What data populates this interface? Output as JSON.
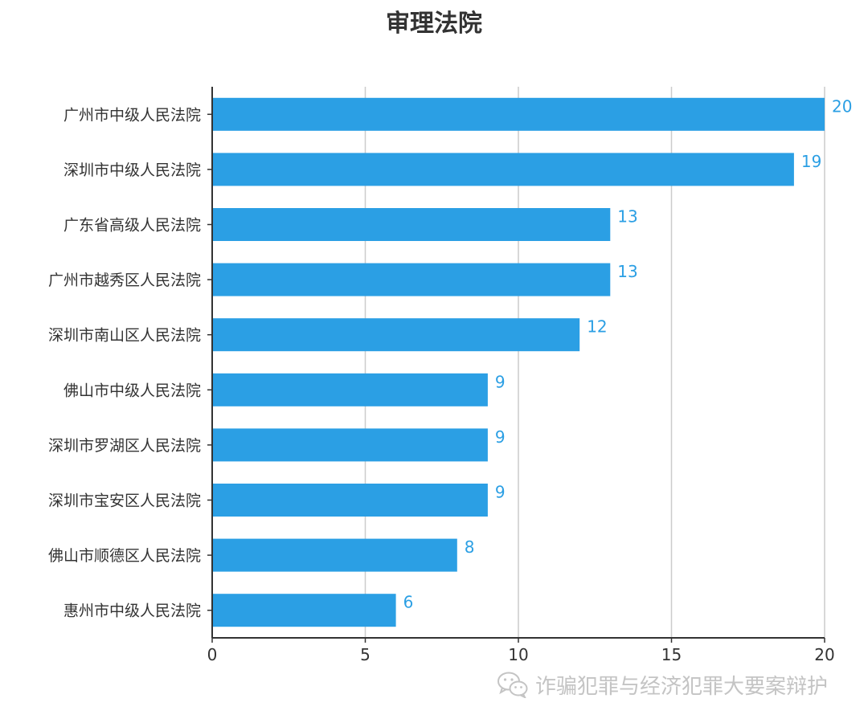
{
  "colors": {
    "bar": "#2b9fe4",
    "label": "#2b9fe4",
    "axis": "#333333",
    "grid": "#cccccc",
    "text": "#333333",
    "watermark": "#c4c4c4"
  },
  "chart_data": {
    "type": "bar",
    "orientation": "horizontal",
    "title": "审理法院",
    "categories": [
      "广州市中级人民法院",
      "深圳市中级人民法院",
      "广东省高级人民法院",
      "广州市越秀区人民法院",
      "深圳市南山区人民法院",
      "佛山市中级人民法院",
      "深圳市罗湖区人民法院",
      "深圳市宝安区人民法院",
      "佛山市顺德区人民法院",
      "惠州市中级人民法院"
    ],
    "values": [
      20,
      19,
      13,
      13,
      12,
      9,
      9,
      9,
      8,
      6
    ],
    "xlim": [
      0,
      20
    ],
    "xticks": [
      0,
      5,
      10,
      15,
      20
    ],
    "grid": true,
    "data_labels": true,
    "legend": "none"
  },
  "watermark": {
    "text": "诈骗犯罪与经济犯罪大要案辩护",
    "icon": "wechat-icon"
  }
}
